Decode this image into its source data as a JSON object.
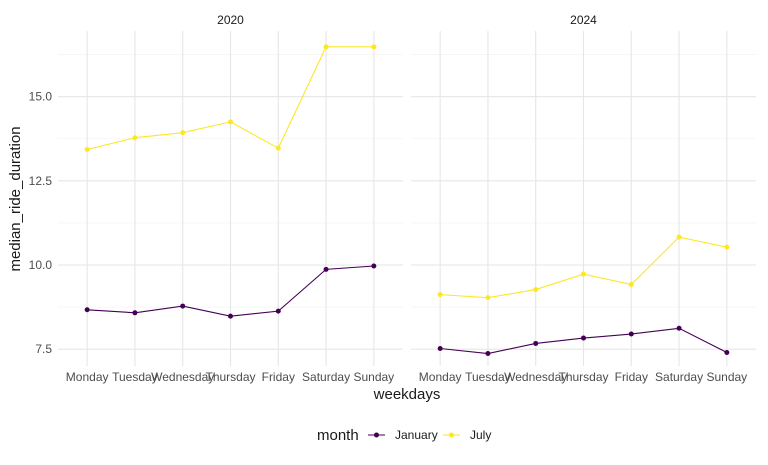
{
  "chart_data": {
    "type": "line",
    "facet_var": "year",
    "facets": [
      {
        "title": "2020",
        "categories": [
          "Monday",
          "Tuesday",
          "Wednesday",
          "Thursday",
          "Friday",
          "Saturday",
          "Sunday"
        ],
        "series": [
          {
            "name": "January",
            "values": [
              8.67,
              8.58,
              8.78,
              8.48,
              8.63,
              9.87,
              9.97
            ]
          },
          {
            "name": "July",
            "values": [
              13.43,
              13.78,
              13.93,
              14.25,
              13.47,
              16.48,
              16.48
            ]
          }
        ]
      },
      {
        "title": "2024",
        "categories": [
          "Monday",
          "Tuesday",
          "Wednesday",
          "Thursday",
          "Friday",
          "Saturday",
          "Sunday"
        ],
        "series": [
          {
            "name": "January",
            "values": [
              7.52,
              7.37,
              7.67,
              7.83,
              7.95,
              8.12,
              7.4
            ]
          },
          {
            "name": "July",
            "values": [
              9.12,
              9.03,
              9.27,
              9.73,
              9.42,
              10.83,
              10.53
            ]
          }
        ]
      }
    ],
    "xlabel": "weekdays",
    "ylabel": "median_ride_duration",
    "ylim": [
      7.0,
      16.95
    ],
    "yticks": [
      7.5,
      10.0,
      12.5,
      15.0
    ],
    "ytick_labels": [
      "7.5",
      "10.0",
      "12.5",
      "15.0"
    ],
    "grid": true,
    "legend": {
      "title": "month",
      "position": "bottom",
      "entries": [
        "January",
        "July"
      ]
    },
    "colors": {
      "January": "#440154",
      "July": "#fde725"
    }
  }
}
